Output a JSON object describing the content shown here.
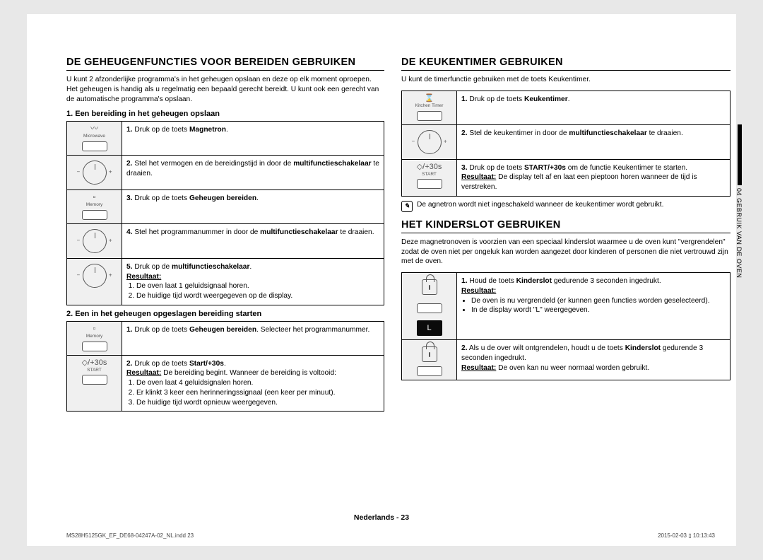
{
  "left": {
    "title": "DE GEHEUGENFUNCTIES VOOR BEREIDEN GEBRUIKEN",
    "intro": "U kunt 2 afzonderlijke programma's in het geheugen opslaan en deze op elk moment oproepen. Het geheugen is handig als u regelmatig een bepaald gerecht bereidt. U kunt ook een gerecht van de automatische programma's opslaan.",
    "section1_title": "1. Een bereiding in het geheugen opslaan",
    "s1": {
      "r1_icon_label": "Microwave",
      "r1_num": "1.",
      "r1_pre": "Druk op de toets ",
      "r1_bold": "Magnetron",
      "r1_post": ".",
      "r2_num": "2.",
      "r2_pre": "Stel het vermogen en de bereidingstijd in door de ",
      "r2_bold": "multifunctieschakelaar",
      "r2_post": " te draaien.",
      "r3_icon_label": "Memory",
      "r3_num": "3.",
      "r3_pre": "Druk op de toets ",
      "r3_bold": "Geheugen bereiden",
      "r3_post": ".",
      "r4_num": "4.",
      "r4_pre": "Stel het programmanummer in door de ",
      "r4_bold": "multifunctieschakelaar",
      "r4_post": " te draaien.",
      "r5_num": "5.",
      "r5_pre": "Druk op de ",
      "r5_bold": "multifunctieschakelaar",
      "r5_post": ".",
      "r5_result_label": "Resultaat:",
      "r5_li1": "De oven laat 1 geluidsignaal horen.",
      "r5_li2": "De huidige tijd wordt weergegeven op de display."
    },
    "section2_title": "2. Een in het geheugen opgeslagen bereiding starten",
    "s2": {
      "r1_icon_label": "Memory",
      "r1_num": "1.",
      "r1_pre": "Druk op de toets ",
      "r1_bold": "Geheugen bereiden",
      "r1_post": ". Selecteer het programmanummer.",
      "r2_icon_text": "+30s",
      "r2_icon_sub": "START",
      "r2_num": "2.",
      "r2_pre": "Druk op de toets ",
      "r2_bold": "Start/+30s",
      "r2_post": ".",
      "r2_result_label": "Resultaat:",
      "r2_result_text": " De bereiding begint. Wanneer de bereiding is voltooid:",
      "r2_li1": "De oven laat 4 geluidsignalen horen.",
      "r2_li2": "Er klinkt 3 keer een herinneringssignaal (een keer per minuut).",
      "r2_li3": "De huidige tijd wordt opnieuw weergegeven."
    }
  },
  "right": {
    "timer_title": "DE KEUKENTIMER GEBRUIKEN",
    "timer_intro": "U kunt de timerfunctie gebruiken met de toets Keukentimer.",
    "t": {
      "r1_icon_label": "Kitchen Timer",
      "r1_num": "1.",
      "r1_pre": "Druk op de toets ",
      "r1_bold": "Keukentimer",
      "r1_post": ".",
      "r2_num": "2.",
      "r2_pre": "Stel de keukentimer in door de ",
      "r2_bold": "multifunctieschakelaar",
      "r2_post": " te draaien.",
      "r3_icon_text": "+30s",
      "r3_icon_sub": "START",
      "r3_num": "3.",
      "r3_pre": "Druk op de toets ",
      "r3_bold": "START/+30s",
      "r3_post": " om de functie Keukentimer te starten.",
      "r3_result_label": "Resultaat:",
      "r3_result_text": " De display telt af en laat een pieptoon horen wanneer de tijd is verstreken."
    },
    "note": "De agnetron wordt niet ingeschakeld wanneer de keukentimer wordt gebruikt.",
    "lock_title": "HET KINDERSLOT GEBRUIKEN",
    "lock_intro": "Deze magnetronoven is voorzien van een speciaal kinderslot waarmee u de oven kunt \"vergrendelen\" zodat de oven niet per ongeluk kan worden aangezet door kinderen of personen die niet vertrouwd zijn met de oven.",
    "l": {
      "r1_num": "1.",
      "r1_pre": "Houd de toets ",
      "r1_bold": "Kinderslot",
      "r1_post": " gedurende 3 seconden ingedrukt.",
      "r1_result_label": "Resultaat:",
      "r1_li1": "De oven is nu vergrendeld (er kunnen geen functies worden geselecteerd).",
      "r1_li2": "In de display wordt \"L\" weergegeven.",
      "disp": "L",
      "r2_num": "2.",
      "r2_pre": "Als u de over wilt ontgrendelen, houdt u de toets ",
      "r2_bold": "Kinderslot",
      "r2_post": " gedurende 3 seconden ingedrukt.",
      "r2_result_label": "Resultaat:",
      "r2_result_text": " De oven kan nu weer normaal worden gebruikt."
    },
    "sidetab": "04  GEBRUIK VAN DE OVEN"
  },
  "footer": {
    "center": "Nederlands - 23",
    "left": "MS28H5125GK_EF_DE68-04247A-02_NL.indd   23",
    "right": "2015-02-03   ▯ 10:13:43"
  }
}
